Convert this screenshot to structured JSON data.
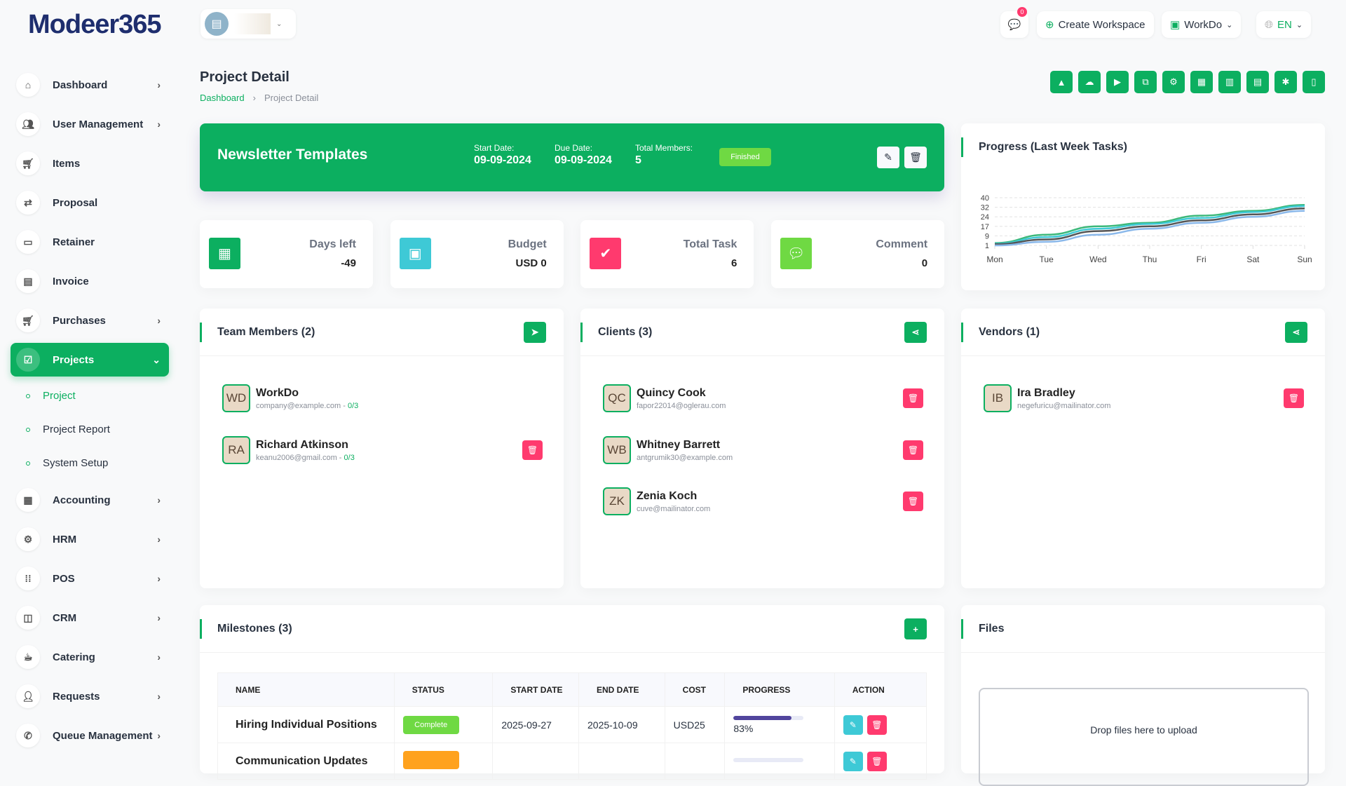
{
  "brand": {
    "logo": "Modeer365"
  },
  "header": {
    "notifications": "0",
    "create_workspace": "Create Workspace",
    "workspace": "WorkDo",
    "language": "EN"
  },
  "sidebar": {
    "items": [
      {
        "label": "Dashboard",
        "icon": "home-icon",
        "chev": true
      },
      {
        "label": "User Management",
        "icon": "users-icon",
        "chev": true
      },
      {
        "label": "Items",
        "icon": "cart-icon",
        "chev": false
      },
      {
        "label": "Proposal",
        "icon": "proposal-icon",
        "chev": false
      },
      {
        "label": "Retainer",
        "icon": "retainer-icon",
        "chev": false
      },
      {
        "label": "Invoice",
        "icon": "invoice-icon",
        "chev": false
      },
      {
        "label": "Purchases",
        "icon": "cart-icon",
        "chev": true
      },
      {
        "label": "Projects",
        "icon": "check-square-icon",
        "chev": true,
        "active": true
      },
      {
        "label": "Accounting",
        "icon": "grid-icon",
        "chev": true
      },
      {
        "label": "HRM",
        "icon": "hrm-icon",
        "chev": true
      },
      {
        "label": "POS",
        "icon": "dots-grid-icon",
        "chev": true
      },
      {
        "label": "CRM",
        "icon": "crm-icon",
        "chev": true
      },
      {
        "label": "Catering",
        "icon": "catering-icon",
        "chev": true
      },
      {
        "label": "Requests",
        "icon": "user-request-icon",
        "chev": true
      },
      {
        "label": "Queue Management",
        "icon": "phone-icon",
        "chev": true
      }
    ],
    "subitems": [
      {
        "label": "Project",
        "active": true
      },
      {
        "label": "Project Report"
      },
      {
        "label": "System Setup"
      }
    ]
  },
  "page": {
    "title": "Project Detail",
    "breadcrumb": [
      "Dashboard",
      "Project Detail"
    ],
    "toolbar_icons": [
      "google-drive-icon",
      "onedrive-icon",
      "zoom-video-icon",
      "copy-icon",
      "settings-icon",
      "calendar-icon",
      "chart-icon",
      "kanban-icon",
      "bug-icon",
      "file-icon"
    ]
  },
  "project": {
    "name": "Newsletter Templates",
    "start_label": "Start Date:",
    "start": "09-09-2024",
    "due_label": "Due Date:",
    "due": "09-09-2024",
    "members_label": "Total Members:",
    "members": "5",
    "status": "Finished"
  },
  "stats": [
    {
      "label": "Days left",
      "value": "-49",
      "color": "#0caf60",
      "icon": "calendar-icon"
    },
    {
      "label": "Budget",
      "value": "USD 0",
      "color": "#3ec9d6",
      "icon": "money-icon"
    },
    {
      "label": "Total Task",
      "value": "6",
      "color": "#ff3a6e",
      "icon": "double-check-icon"
    },
    {
      "label": "Comment",
      "value": "0",
      "color": "#6fd943",
      "icon": "comments-icon"
    }
  ],
  "progress": {
    "title": "Progress (Last Week Tasks)"
  },
  "chart_data": {
    "type": "line",
    "x": [
      "Mon",
      "Tue",
      "Wed",
      "Thu",
      "Fri",
      "Sat",
      "Sun"
    ],
    "yticks": [
      1,
      9,
      17,
      24,
      32,
      40
    ],
    "ylim": [
      0,
      40
    ],
    "grid": true,
    "series": [
      {
        "color": "#3cb87a",
        "values": [
          2,
          9,
          16,
          19,
          25,
          29,
          34
        ]
      },
      {
        "color": "#3ec9d6",
        "values": [
          1.5,
          7,
          14,
          18,
          23,
          28,
          33
        ]
      },
      {
        "color": "#555555",
        "values": [
          1,
          5,
          12,
          16,
          21,
          26,
          31
        ]
      },
      {
        "color": "#8ab8ea",
        "values": [
          0,
          3,
          9,
          14,
          19,
          24,
          29
        ]
      }
    ]
  },
  "team": {
    "title": "Team Members (2)",
    "members": [
      {
        "name": "WorkDo",
        "email": "company@example.com",
        "tasks": "0/3",
        "avatar": "WD",
        "deletable": false
      },
      {
        "name": "Richard Atkinson",
        "email": "keanu2006@gmail.com",
        "tasks": "0/3",
        "avatar": "RA",
        "deletable": true
      }
    ]
  },
  "clients": {
    "title": "Clients (3)",
    "members": [
      {
        "name": "Quincy Cook",
        "email": "fapor22014@oglerau.com",
        "avatar": "QC"
      },
      {
        "name": "Whitney Barrett",
        "email": "antgrumik30@example.com",
        "avatar": "WB"
      },
      {
        "name": "Zenia Koch",
        "email": "cuve@mailinator.com",
        "avatar": "ZK"
      }
    ]
  },
  "vendors": {
    "title": "Vendors (1)",
    "members": [
      {
        "name": "Ira Bradley",
        "email": "negefuricu@mailinator.com",
        "avatar": "IB"
      }
    ]
  },
  "milestones": {
    "title": "Milestones (3)",
    "columns": [
      "NAME",
      "STATUS",
      "START DATE",
      "END DATE",
      "COST",
      "PROGRESS",
      "ACTION"
    ],
    "rows": [
      {
        "name": "Hiring Individual Positions",
        "status": "Complete",
        "status_color": "#6fd943",
        "start": "2025-09-27",
        "end": "2025-10-09",
        "cost": "USD25",
        "progress": 83,
        "progress_label": "83%"
      },
      {
        "name": "Communication Updates",
        "status": "",
        "status_color": "#ffa21d",
        "start": "",
        "end": "",
        "cost": "",
        "progress": 0,
        "progress_label": ""
      }
    ]
  },
  "files": {
    "title": "Files",
    "dropzone": "Drop files here to upload"
  }
}
